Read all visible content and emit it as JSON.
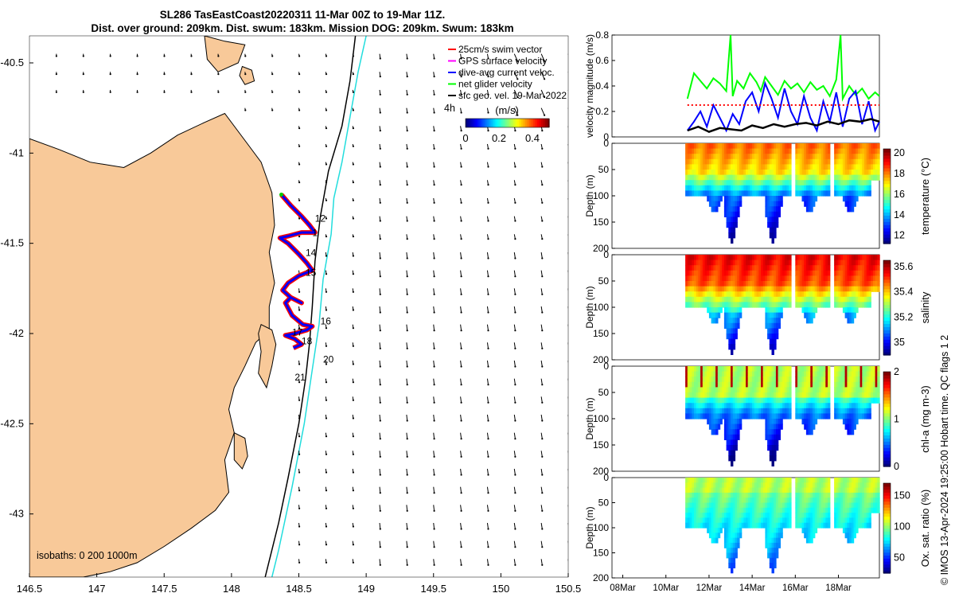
{
  "title_line1": "SL286 TasEastCoast20220311 11-Mar 00Z to 19-Mar 11Z.",
  "title_line2": "Dist. over ground: 209km. Dist. swum: 183km. Mission DOG: 209km. Swum: 183km",
  "credit_text": "© IMOS 13-Apr-2024 19:25:00 Hobart time. QC flags 1  2",
  "colors": {
    "land": "#f8c999",
    "track_red": "#ff0000",
    "track_blue": "#0000ff",
    "isobath_200": "#000000",
    "isobath_1000": "#22dddd",
    "vel_green": "#00ff00",
    "vel_blue": "#0000ff",
    "vel_black": "#000000",
    "vel_red": "#ff0000"
  },
  "chart_data": [
    {
      "type": "scatter",
      "name": "map",
      "xlim": [
        146.5,
        150.5
      ],
      "ylim": [
        -43.35,
        -40.35
      ],
      "x_ticks": [
        146.5,
        147,
        147.5,
        148,
        148.5,
        149,
        149.5,
        150,
        150.5
      ],
      "y_ticks": [
        -40.5,
        -41,
        -41.5,
        -42,
        -42.5,
        -43
      ],
      "legend": {
        "items": [
          "25cm/s swim vector",
          "GPS surface velocity",
          "dive-avg current veloc.",
          "net glider velocity",
          "sfc geo. vel. 19-Mar-2022"
        ],
        "placement": "top-right"
      },
      "colorbar": {
        "label": "(m/s)",
        "ticks": [
          0,
          0.2,
          0.4
        ],
        "range": [
          0,
          0.5
        ],
        "time_label": "4h"
      },
      "isobaths_label": "isobaths: 0   200  1000m",
      "day_labels": [
        {
          "text": "12",
          "lon": 148.62,
          "lat": -41.38
        },
        {
          "text": "1",
          "lon": 148.6,
          "lat": -41.46
        },
        {
          "text": "14",
          "lon": 148.55,
          "lat": -41.57
        },
        {
          "text": "15",
          "lon": 148.55,
          "lat": -41.68
        },
        {
          "text": "16",
          "lon": 148.66,
          "lat": -41.95
        },
        {
          "text": "17",
          "lon": 148.45,
          "lat": -42.01
        },
        {
          "text": "18",
          "lon": 148.52,
          "lat": -42.06
        },
        {
          "text": "20",
          "lon": 148.68,
          "lat": -42.16
        },
        {
          "text": "21",
          "lon": 148.47,
          "lat": -42.26
        }
      ],
      "glider_track": [
        [
          148.37,
          -41.23
        ],
        [
          148.44,
          -41.29
        ],
        [
          148.52,
          -41.35
        ],
        [
          148.58,
          -41.4
        ],
        [
          148.62,
          -41.44
        ],
        [
          148.52,
          -41.44
        ],
        [
          148.42,
          -41.46
        ],
        [
          148.36,
          -41.47
        ],
        [
          148.42,
          -41.5
        ],
        [
          148.5,
          -41.56
        ],
        [
          148.56,
          -41.61
        ],
        [
          148.6,
          -41.65
        ],
        [
          148.5,
          -41.68
        ],
        [
          148.42,
          -41.72
        ],
        [
          148.38,
          -41.76
        ],
        [
          148.44,
          -41.8
        ],
        [
          148.52,
          -41.83
        ],
        [
          148.44,
          -41.8
        ],
        [
          148.4,
          -41.83
        ],
        [
          148.45,
          -41.9
        ],
        [
          148.53,
          -41.95
        ],
        [
          148.6,
          -41.96
        ],
        [
          148.56,
          -41.98
        ],
        [
          148.47,
          -42.0
        ],
        [
          148.4,
          -42.01
        ],
        [
          148.47,
          -42.03
        ],
        [
          148.52,
          -42.06
        ],
        [
          148.46,
          -42.08
        ]
      ]
    },
    {
      "type": "line",
      "name": "velocity magnitude",
      "ylabel": "velocity magnitude (m/s)",
      "ylim": [
        0,
        0.8
      ],
      "y_ticks": [
        0,
        0.2,
        0.4,
        0.6,
        0.8
      ],
      "x_range_days": [
        7.5,
        19.9
      ],
      "series": [
        {
          "name": "net glider velocity",
          "color": "green",
          "x": [
            11.0,
            11.3,
            11.6,
            11.9,
            12.2,
            12.5,
            12.8,
            13.0,
            13.1,
            13.3,
            13.6,
            13.9,
            14.2,
            14.4,
            14.6,
            14.9,
            15.2,
            15.5,
            15.8,
            16.1,
            16.4,
            16.7,
            17.0,
            17.3,
            17.6,
            17.9,
            18.1,
            18.2,
            18.5,
            18.8,
            19.1,
            19.4,
            19.7,
            19.9
          ],
          "y": [
            0.3,
            0.5,
            0.44,
            0.38,
            0.46,
            0.42,
            0.36,
            0.8,
            0.32,
            0.44,
            0.38,
            0.5,
            0.43,
            0.36,
            0.47,
            0.4,
            0.33,
            0.44,
            0.38,
            0.42,
            0.35,
            0.43,
            0.37,
            0.4,
            0.32,
            0.45,
            0.8,
            0.3,
            0.4,
            0.33,
            0.38,
            0.3,
            0.35,
            0.32
          ]
        },
        {
          "name": "dive-avg current veloc.",
          "color": "blue",
          "x": [
            11.0,
            11.3,
            11.6,
            11.9,
            12.2,
            12.5,
            12.8,
            13.1,
            13.4,
            13.7,
            14.0,
            14.3,
            14.6,
            14.9,
            15.2,
            15.5,
            15.8,
            16.1,
            16.4,
            16.7,
            17.0,
            17.3,
            17.6,
            17.9,
            18.2,
            18.5,
            18.8,
            19.1,
            19.4,
            19.7,
            19.9
          ],
          "y": [
            0.05,
            0.12,
            0.2,
            0.08,
            0.25,
            0.15,
            0.05,
            0.18,
            0.1,
            0.28,
            0.35,
            0.2,
            0.42,
            0.3,
            0.15,
            0.38,
            0.2,
            0.1,
            0.32,
            0.15,
            0.05,
            0.28,
            0.12,
            0.35,
            0.08,
            0.3,
            0.36,
            0.1,
            0.28,
            0.05,
            0.12
          ]
        },
        {
          "name": "net glider velocity (smoothed)",
          "color": "black",
          "x": [
            11.0,
            11.5,
            12.0,
            12.5,
            13.0,
            13.5,
            14.0,
            14.5,
            15.0,
            15.5,
            16.0,
            16.5,
            17.0,
            17.5,
            18.0,
            18.5,
            19.0,
            19.5,
            19.9
          ],
          "y": [
            0.05,
            0.08,
            0.04,
            0.07,
            0.06,
            0.05,
            0.09,
            0.07,
            0.1,
            0.08,
            0.1,
            0.11,
            0.09,
            0.12,
            0.1,
            0.13,
            0.12,
            0.14,
            0.12
          ]
        },
        {
          "name": "25cm/s swim vector",
          "color": "red",
          "x": [
            11.0,
            19.9
          ],
          "y": [
            0.25,
            0.25
          ]
        }
      ]
    },
    {
      "type": "heatmap",
      "name": "temperature",
      "ylabel": "Depth (m)",
      "colorbar_label": "temperature (°C)",
      "colorbar_ticks": [
        12,
        14,
        16,
        18,
        20
      ],
      "ylim": [
        0,
        200
      ],
      "y_ticks": [
        0,
        50,
        100,
        150,
        200
      ],
      "colormap": "jet"
    },
    {
      "type": "heatmap",
      "name": "salinity",
      "ylabel": "Depth (m)",
      "colorbar_label": "salinity",
      "colorbar_ticks": [
        35,
        35.2,
        35.4,
        35.6
      ],
      "ylim": [
        0,
        200
      ],
      "y_ticks": [
        0,
        50,
        100,
        150,
        200
      ],
      "colormap": "jet"
    },
    {
      "type": "heatmap",
      "name": "chl-a",
      "ylabel": "Depth (m)",
      "colorbar_label": "chl-a (mg m-3)",
      "colorbar_ticks": [
        0,
        1,
        2
      ],
      "ylim": [
        0,
        200
      ],
      "y_ticks": [
        0,
        50,
        100,
        150,
        200
      ],
      "colormap": "jet"
    },
    {
      "type": "heatmap",
      "name": "oxygen saturation",
      "ylabel": "Depth (m)",
      "colorbar_label": "Ox. sat. ratio (%)",
      "colorbar_ticks": [
        50,
        100,
        150
      ],
      "ylim": [
        0,
        200
      ],
      "y_ticks": [
        0,
        50,
        100,
        150,
        200
      ],
      "colormap": "jet",
      "time_ticks": [
        "08Mar",
        "10Mar",
        "12Mar",
        "14Mar",
        "16Mar",
        "18Mar"
      ]
    }
  ]
}
